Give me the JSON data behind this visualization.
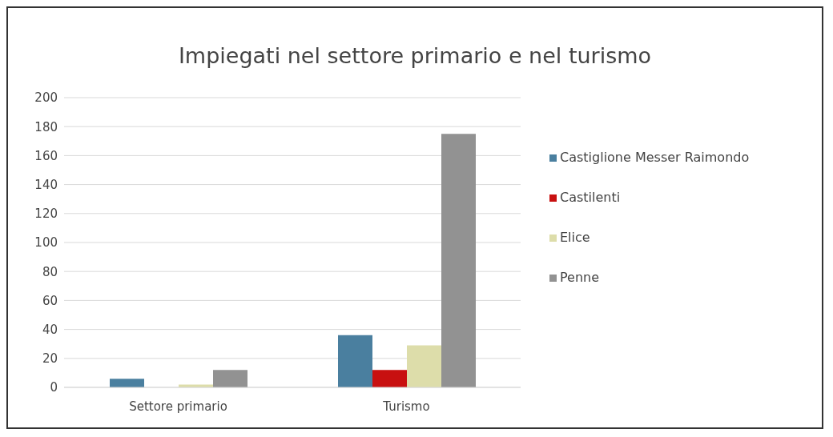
{
  "chart_data": {
    "type": "bar",
    "title": "Impiegati nel settore primario e nel turismo",
    "categories": [
      "Settore primario",
      "Turismo"
    ],
    "series": [
      {
        "name": "Castiglione Messer Raimondo",
        "color": "#4a7f9f",
        "values": [
          6,
          36
        ]
      },
      {
        "name": "Castilenti",
        "color": "#c81010",
        "values": [
          0,
          12
        ]
      },
      {
        "name": "Elice",
        "color": "#ddddaa",
        "values": [
          2,
          29
        ]
      },
      {
        "name": "Penne",
        "color": "#929292",
        "values": [
          12,
          175
        ]
      }
    ],
    "ylim": [
      0,
      200
    ],
    "yticks": [
      0,
      20,
      40,
      60,
      80,
      100,
      120,
      140,
      160,
      180,
      200
    ],
    "grid": "y",
    "legend": "right"
  }
}
